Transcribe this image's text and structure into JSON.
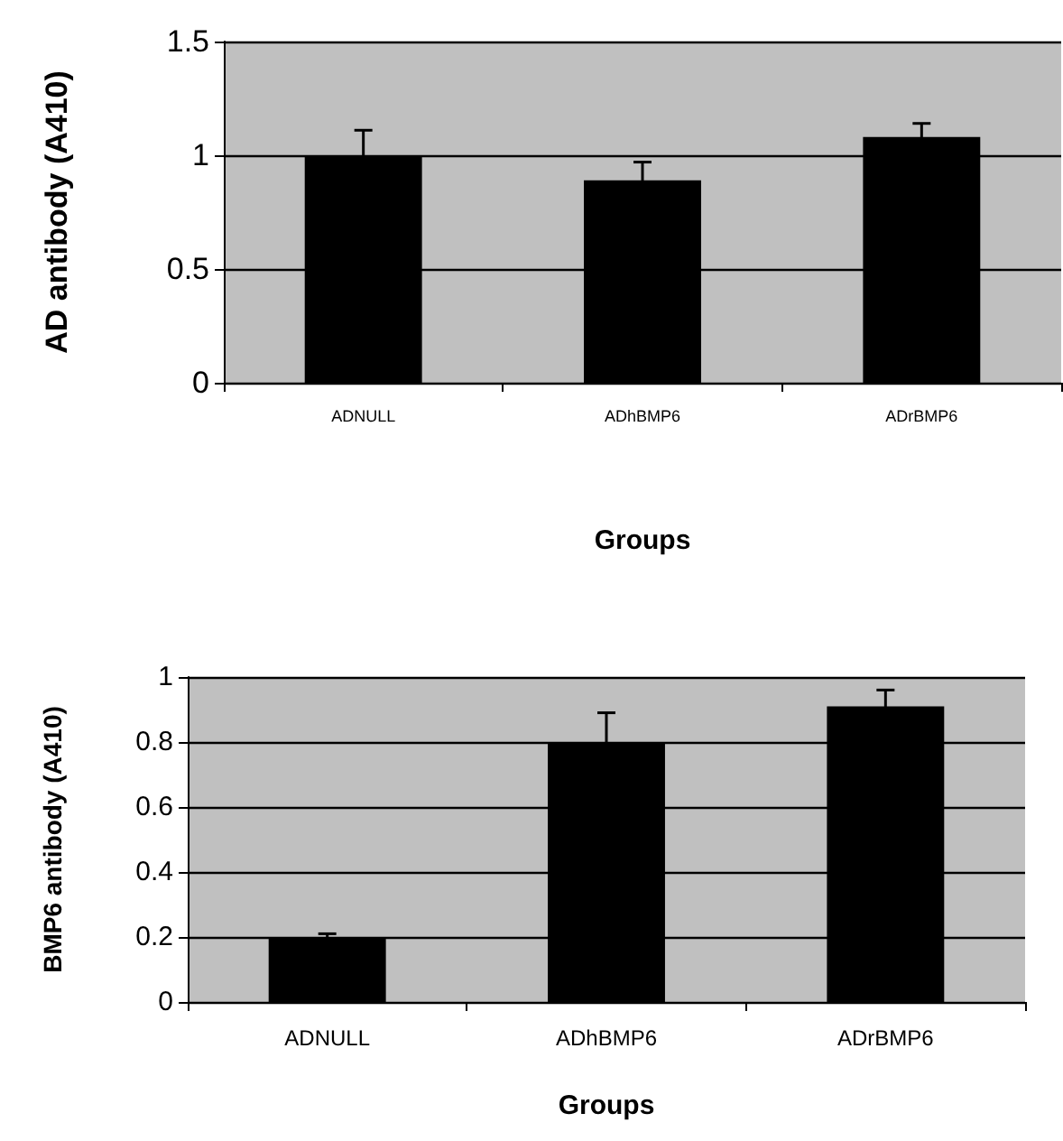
{
  "chart_data": [
    {
      "type": "bar",
      "xlabel": "Groups",
      "ylabel": "AD antibody (A410)",
      "categories": [
        "ADNULL",
        "ADhBMP6",
        "ADrBMP6"
      ],
      "values": [
        1.0,
        0.89,
        1.08
      ],
      "errors": [
        0.11,
        0.08,
        0.06
      ],
      "color": "#000000",
      "ylim": [
        0,
        1.5
      ],
      "yticks": [
        0,
        0.5,
        1,
        1.5
      ],
      "grid": "y"
    },
    {
      "type": "bar",
      "xlabel": "Groups",
      "ylabel": "BMP6 antibody (A410)",
      "categories": [
        "ADNULL",
        "ADhBMP6",
        "ADrBMP6"
      ],
      "values": [
        0.2,
        0.8,
        0.91
      ],
      "errors": [
        0.01,
        0.09,
        0.05
      ],
      "color": "#000000",
      "ylim": [
        0,
        1
      ],
      "yticks": [
        0,
        0.2,
        0.4,
        0.6,
        0.8,
        1
      ],
      "grid": "y"
    }
  ]
}
